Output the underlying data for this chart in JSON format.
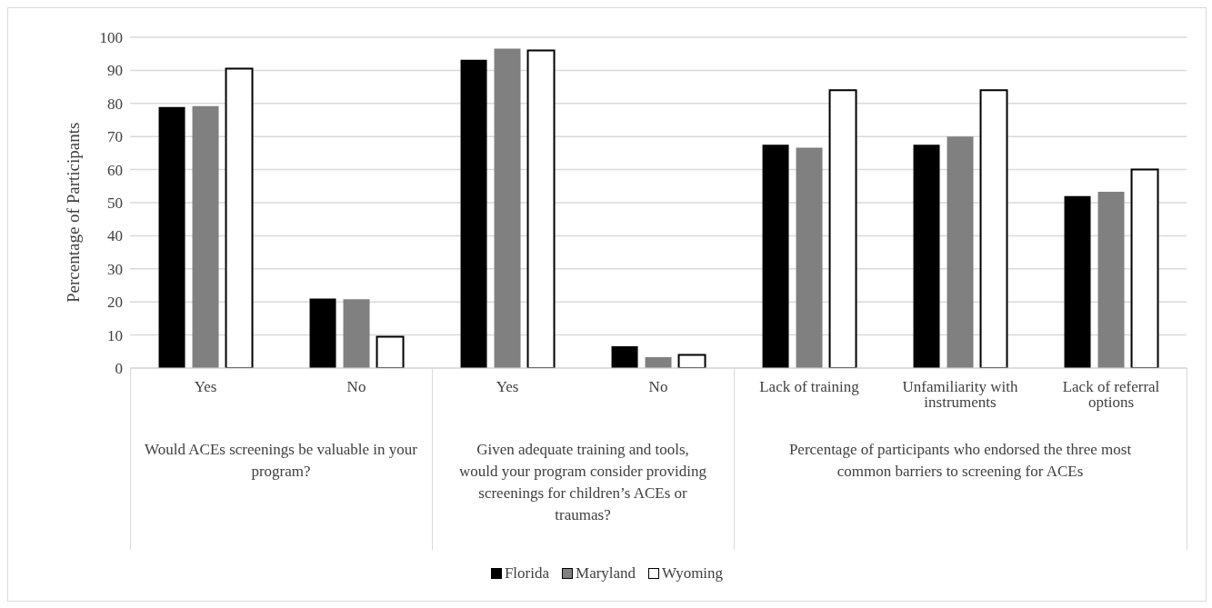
{
  "chart_data": {
    "type": "bar",
    "ylabel": "Percentage of Participants",
    "categories": [
      "Yes",
      "No",
      "Yes",
      "No",
      "Lack of training",
      "Unfamiliarity with instruments",
      "Lack of referral options"
    ],
    "series": [
      {
        "name": "Florida",
        "color": "#000000",
        "values": [
          78.9,
          21.0,
          93.2,
          6.6,
          67.5,
          67.5,
          52.0
        ]
      },
      {
        "name": "Maryland",
        "color": "#808080",
        "values": [
          79.2,
          20.8,
          96.6,
          3.3,
          66.6,
          70.0,
          53.3
        ]
      },
      {
        "name": "Wyoming",
        "color": "#ffffff",
        "values": [
          90.5,
          9.5,
          96.0,
          4.0,
          84.0,
          84.0,
          60.0
        ]
      }
    ],
    "annotations": [
      "Would ACEs screenings be valuable in your program?",
      "Given adequate training and tools, would your program consider providing screenings for children’s ACEs or traumas?",
      "Percentage of participants who endorsed the three most common barriers to screening for ACEs"
    ],
    "ylim": [
      0,
      100
    ],
    "yticks": [
      0,
      10,
      20,
      30,
      40,
      50,
      60,
      70,
      80,
      90,
      100
    ],
    "grid": "y",
    "legend": "bottom"
  }
}
